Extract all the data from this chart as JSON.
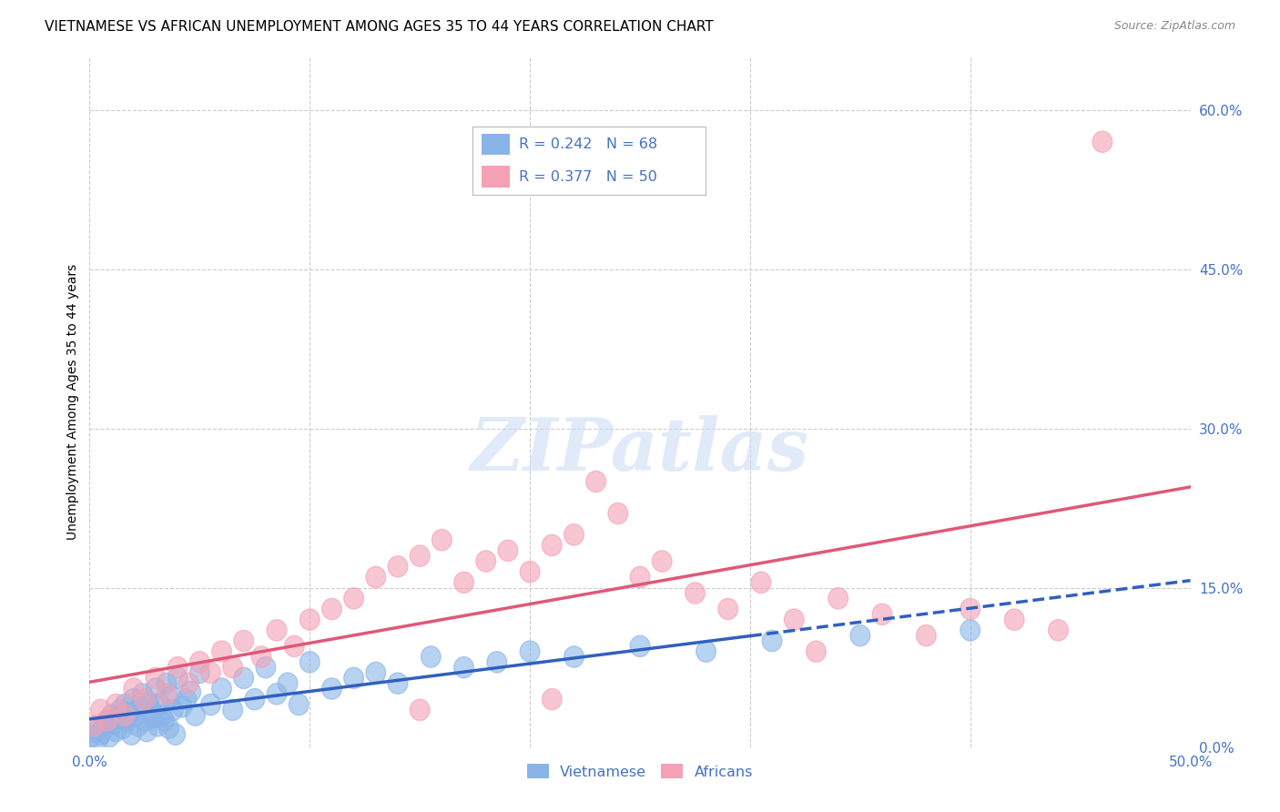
{
  "title": "VIETNAMESE VS AFRICAN UNEMPLOYMENT AMONG AGES 35 TO 44 YEARS CORRELATION CHART",
  "source": "Source: ZipAtlas.com",
  "ylabel": "Unemployment Among Ages 35 to 44 years",
  "xlim": [
    0.0,
    0.5
  ],
  "ylim": [
    0.0,
    0.65
  ],
  "xticks": [
    0.0,
    0.5
  ],
  "xtick_labels": [
    "0.0%",
    "50.0%"
  ],
  "yticks_right": [
    0.0,
    0.15,
    0.3,
    0.45,
    0.6
  ],
  "ytick_right_labels": [
    "0.0%",
    "15.0%",
    "30.0%",
    "45.0%",
    "60.0%"
  ],
  "background_color": "#ffffff",
  "grid_color": "#cccccc",
  "legend_R1": "0.242",
  "legend_N1": "68",
  "legend_R2": "0.377",
  "legend_N2": "50",
  "color_vietnamese": "#89b4e8",
  "color_africans": "#f4a0b5",
  "color_line_vietnamese": "#3060c0",
  "color_line_africans": "#e05878",
  "color_text_blue": "#4472c4",
  "title_fontsize": 11,
  "axis_label_fontsize": 10,
  "tick_fontsize": 11,
  "viet_n": 68,
  "afr_n": 50,
  "viet_x": [
    0.001,
    0.003,
    0.004,
    0.005,
    0.006,
    0.007,
    0.008,
    0.009,
    0.01,
    0.011,
    0.012,
    0.013,
    0.014,
    0.015,
    0.016,
    0.017,
    0.018,
    0.019,
    0.02,
    0.021,
    0.022,
    0.023,
    0.024,
    0.025,
    0.026,
    0.027,
    0.028,
    0.029,
    0.03,
    0.031,
    0.032,
    0.033,
    0.034,
    0.035,
    0.036,
    0.037,
    0.038,
    0.039,
    0.04,
    0.042,
    0.044,
    0.046,
    0.048,
    0.05,
    0.055,
    0.06,
    0.065,
    0.07,
    0.075,
    0.08,
    0.085,
    0.09,
    0.095,
    0.1,
    0.11,
    0.12,
    0.13,
    0.14,
    0.155,
    0.17,
    0.185,
    0.2,
    0.22,
    0.25,
    0.28,
    0.31,
    0.35,
    0.4
  ],
  "viet_y": [
    0.01,
    0.015,
    0.008,
    0.012,
    0.02,
    0.018,
    0.025,
    0.01,
    0.03,
    0.022,
    0.015,
    0.028,
    0.035,
    0.018,
    0.04,
    0.025,
    0.032,
    0.012,
    0.045,
    0.03,
    0.02,
    0.038,
    0.05,
    0.025,
    0.015,
    0.042,
    0.035,
    0.028,
    0.055,
    0.02,
    0.04,
    0.03,
    0.025,
    0.06,
    0.018,
    0.048,
    0.035,
    0.012,
    0.065,
    0.038,
    0.045,
    0.052,
    0.03,
    0.07,
    0.04,
    0.055,
    0.035,
    0.065,
    0.045,
    0.075,
    0.05,
    0.06,
    0.04,
    0.08,
    0.055,
    0.065,
    0.07,
    0.06,
    0.085,
    0.075,
    0.08,
    0.09,
    0.085,
    0.095,
    0.09,
    0.1,
    0.105,
    0.11
  ],
  "afr_x": [
    0.002,
    0.005,
    0.008,
    0.012,
    0.016,
    0.02,
    0.025,
    0.03,
    0.035,
    0.04,
    0.045,
    0.05,
    0.055,
    0.06,
    0.065,
    0.07,
    0.078,
    0.085,
    0.093,
    0.1,
    0.11,
    0.12,
    0.13,
    0.14,
    0.15,
    0.16,
    0.17,
    0.18,
    0.19,
    0.2,
    0.21,
    0.22,
    0.23,
    0.24,
    0.25,
    0.26,
    0.275,
    0.29,
    0.305,
    0.32,
    0.34,
    0.36,
    0.38,
    0.4,
    0.42,
    0.44,
    0.46,
    0.33,
    0.21,
    0.15
  ],
  "afr_y": [
    0.02,
    0.035,
    0.025,
    0.04,
    0.03,
    0.055,
    0.045,
    0.065,
    0.05,
    0.075,
    0.06,
    0.08,
    0.07,
    0.09,
    0.075,
    0.1,
    0.085,
    0.11,
    0.095,
    0.12,
    0.13,
    0.14,
    0.16,
    0.17,
    0.18,
    0.195,
    0.155,
    0.175,
    0.185,
    0.165,
    0.19,
    0.2,
    0.25,
    0.22,
    0.16,
    0.175,
    0.145,
    0.13,
    0.155,
    0.12,
    0.14,
    0.125,
    0.105,
    0.13,
    0.12,
    0.11,
    0.57,
    0.09,
    0.045,
    0.035
  ],
  "afr_line_x": [
    0.0,
    0.5
  ],
  "afr_line_y": [
    0.03,
    0.27
  ]
}
